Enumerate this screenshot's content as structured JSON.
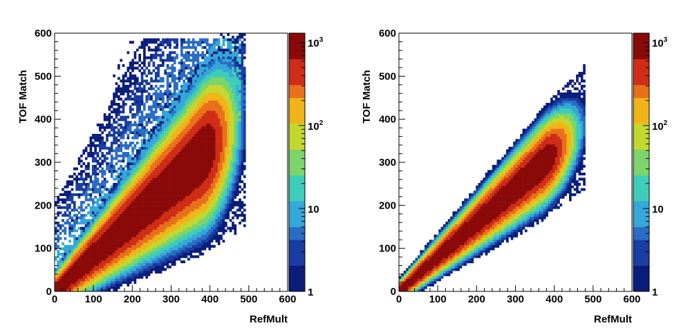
{
  "chart_data": [
    {
      "type": "heatmap",
      "xlabel": "RefMult",
      "ylabel": "TOF Match",
      "xlim": [
        0,
        600
      ],
      "ylim": [
        0,
        600
      ],
      "x_ticks": [
        "0",
        "100",
        "200",
        "300",
        "400",
        "500",
        "600"
      ],
      "y_ticks": [
        "0",
        "100",
        "200",
        "300",
        "400",
        "500",
        "600"
      ],
      "color_scale": "log",
      "colorbar_range": [
        1,
        1300
      ],
      "colorbar_labels": [
        {
          "base": "1",
          "exp": "",
          "value": 1
        },
        {
          "base": "10",
          "exp": "",
          "value": 10
        },
        {
          "base": "10",
          "exp": "2",
          "value": 100
        },
        {
          "base": "10",
          "exp": "3",
          "value": 1000
        }
      ],
      "colors": [
        "#0b1d7a",
        "#1a3da3",
        "#2a6dc4",
        "#35a7d8",
        "#3ecdb8",
        "#7cd46a",
        "#c3d82e",
        "#f0b419",
        "#e8701b",
        "#cf2d17",
        "#8a0a0a"
      ],
      "band": {
        "slope": 0.83,
        "x_max": 480,
        "ridge_end": 380,
        "width_near": 14,
        "width_far": 35,
        "slope_spread": 0.06
      },
      "outliers": {
        "present": true,
        "upper_fraction": 0.55,
        "y_max": 590
      }
    },
    {
      "type": "heatmap",
      "xlabel": "RefMult",
      "ylabel": "TOF Match",
      "xlim": [
        0,
        600
      ],
      "ylim": [
        0,
        600
      ],
      "x_ticks": [
        "0",
        "100",
        "200",
        "300",
        "400",
        "500",
        "600"
      ],
      "y_ticks": [
        "0",
        "100",
        "200",
        "300",
        "400",
        "500",
        "600"
      ],
      "color_scale": "log",
      "colorbar_range": [
        1,
        1300
      ],
      "colorbar_labels": [
        {
          "base": "1",
          "exp": "",
          "value": 1
        },
        {
          "base": "10",
          "exp": "",
          "value": 10
        },
        {
          "base": "10",
          "exp": "2",
          "value": 100
        },
        {
          "base": "10",
          "exp": "3",
          "value": 1000
        }
      ],
      "colors": [
        "#0b1d7a",
        "#1a3da3",
        "#2a6dc4",
        "#35a7d8",
        "#3ecdb8",
        "#7cd46a",
        "#c3d82e",
        "#f0b419",
        "#e8701b",
        "#cf2d17",
        "#8a0a0a"
      ],
      "band": {
        "slope": 0.8,
        "x_max": 470,
        "ridge_end": 370,
        "width_near": 8,
        "width_far": 22,
        "slope_spread": 0.03
      },
      "outliers": {
        "present": false,
        "upper_fraction": 0,
        "y_max": 480
      }
    }
  ]
}
